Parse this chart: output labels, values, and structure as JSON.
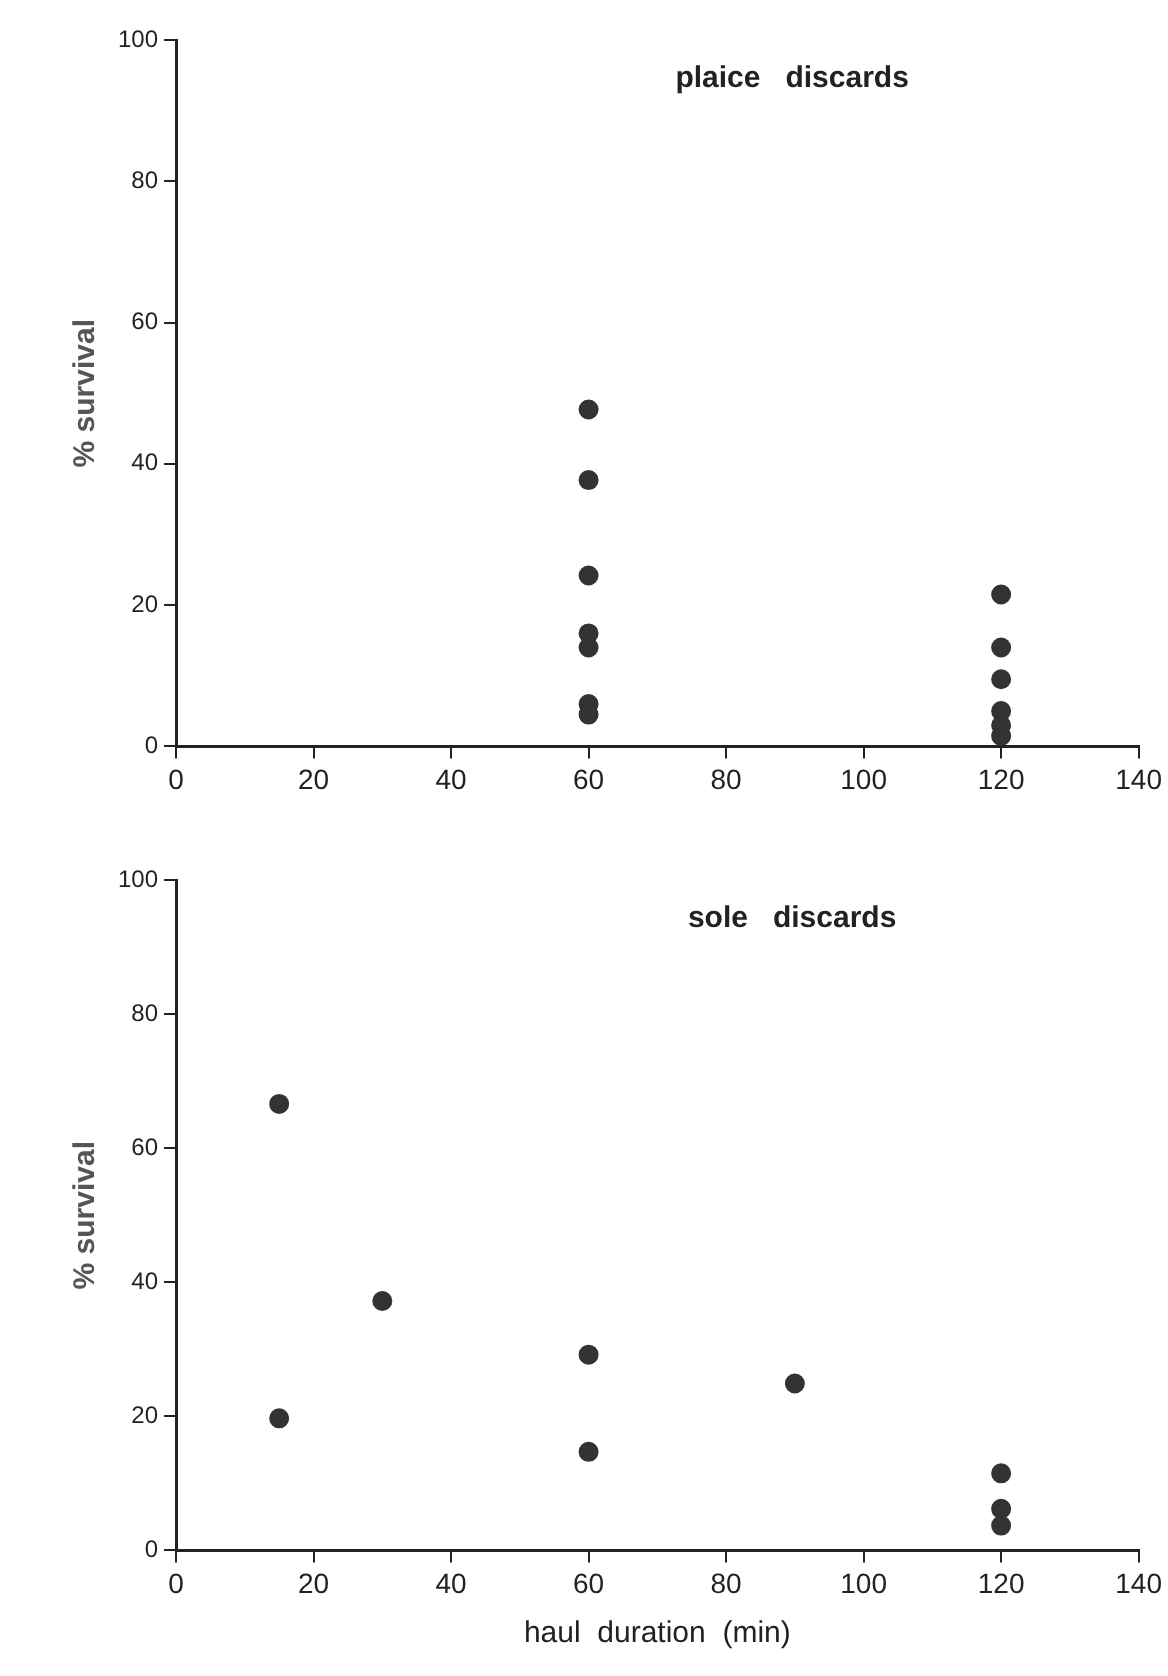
{
  "chart_data": [
    {
      "type": "scatter",
      "title": "plaice   discards",
      "ylabel": "% survival",
      "xlim": [
        0,
        140
      ],
      "xticks": [
        0,
        20,
        40,
        60,
        80,
        100,
        120,
        140
      ],
      "ylim": [
        0,
        100
      ],
      "yticks": [
        0,
        20,
        40,
        60,
        80,
        100
      ],
      "grid": false,
      "legend": false,
      "marker": "circle",
      "series": [
        {
          "color": "#333333",
          "x": [
            60,
            60,
            60,
            60,
            60,
            60,
            60,
            120,
            120,
            120,
            120,
            120,
            120
          ],
          "values": [
            47.7,
            37.7,
            24.2,
            16,
            14,
            6,
            4.5,
            21.5,
            14,
            9.5,
            5,
            3,
            1.5
          ]
        }
      ]
    },
    {
      "type": "scatter",
      "title": "sole   discards",
      "xlabel": "haul  duration  (min)",
      "ylabel": "% survival",
      "xlim": [
        0,
        140
      ],
      "xticks": [
        0,
        20,
        40,
        60,
        80,
        100,
        120,
        140
      ],
      "ylim": [
        0,
        100
      ],
      "yticks": [
        0,
        20,
        40,
        60,
        80,
        100
      ],
      "grid": false,
      "legend": false,
      "marker": "circle",
      "series": [
        {
          "color": "#333333",
          "x": [
            15,
            15,
            30,
            60,
            60,
            90,
            120,
            120,
            120
          ],
          "values": [
            66.6,
            19.7,
            37.2,
            29.2,
            14.7,
            24.9,
            11.5,
            6.2,
            3.7
          ]
        }
      ]
    }
  ]
}
